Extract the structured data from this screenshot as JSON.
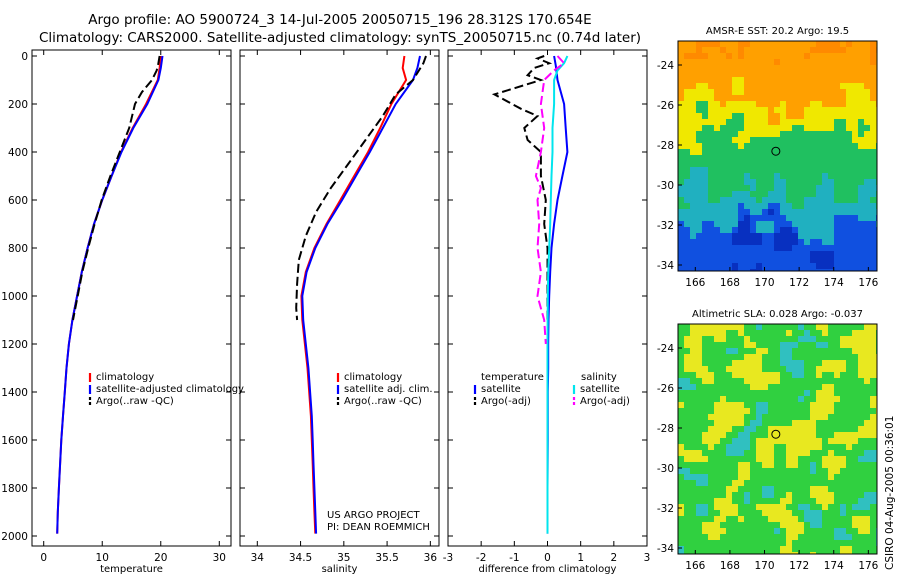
{
  "header": {
    "title_line1": "Argo profile: AO 5900724_3 14-Jul-2005 20050715_196 28.312S 170.654E",
    "title_line2": "Climatology: CARS2000. Satellite-adjusted climatology: synTS_20050715.nc (0.74d later)"
  },
  "credit": "CSIRO 04-Aug-2005 00:36:01",
  "colors": {
    "climatology": "#ff0000",
    "satellite": "#0000ff",
    "argo": "#000000",
    "salinity_satellite": "#00e5ee",
    "salinity_argo": "#ff00ff"
  },
  "chart_data": [
    {
      "type": "line",
      "xlabel": "temperature",
      "ylabel": "",
      "xlim": [
        -2,
        32
      ],
      "ylim": [
        0,
        2050
      ],
      "y_inverted": true,
      "xticks": [
        "0",
        "10",
        "20",
        "30"
      ],
      "yticks": [
        "0",
        "200",
        "400",
        "600",
        "800",
        "1000",
        "1200",
        "1400",
        "1600",
        "1800",
        "2000"
      ],
      "legend": [
        "climatology",
        "satellite-adjusted climatology",
        "Argo(..raw -QC)"
      ],
      "series": [
        {
          "name": "climatology",
          "points": [
            [
              20.0,
              0
            ],
            [
              19.8,
              50
            ],
            [
              19.5,
              100
            ],
            [
              17.5,
              200
            ],
            [
              15.2,
              300
            ],
            [
              13.2,
              400
            ],
            [
              11.6,
              500
            ],
            [
              10.0,
              600
            ],
            [
              8.6,
              700
            ],
            [
              7.5,
              800
            ],
            [
              6.5,
              900
            ],
            [
              5.7,
              1000
            ],
            [
              4.9,
              1100
            ],
            [
              4.3,
              1200
            ],
            [
              3.9,
              1300
            ],
            [
              3.6,
              1400
            ],
            [
              3.3,
              1500
            ],
            [
              3.0,
              1600
            ],
            [
              2.8,
              1700
            ],
            [
              2.6,
              1800
            ],
            [
              2.4,
              1900
            ],
            [
              2.3,
              1990
            ]
          ]
        },
        {
          "name": "satellite-adjusted climatology",
          "points": [
            [
              20.3,
              0
            ],
            [
              20.0,
              50
            ],
            [
              19.6,
              100
            ],
            [
              17.7,
              200
            ],
            [
              15.3,
              300
            ],
            [
              13.3,
              400
            ],
            [
              11.6,
              500
            ],
            [
              10.0,
              600
            ],
            [
              8.6,
              700
            ],
            [
              7.5,
              800
            ],
            [
              6.5,
              900
            ],
            [
              5.7,
              1000
            ],
            [
              4.9,
              1100
            ],
            [
              4.3,
              1200
            ],
            [
              3.9,
              1300
            ],
            [
              3.6,
              1400
            ],
            [
              3.3,
              1500
            ],
            [
              3.0,
              1600
            ],
            [
              2.8,
              1700
            ],
            [
              2.6,
              1800
            ],
            [
              2.4,
              1900
            ],
            [
              2.3,
              1990
            ]
          ]
        },
        {
          "name": "Argo(..raw -QC)",
          "points": [
            [
              19.8,
              0
            ],
            [
              19.6,
              30
            ],
            [
              19.3,
              60
            ],
            [
              18.5,
              100
            ],
            [
              16.8,
              150
            ],
            [
              15.6,
              200
            ],
            [
              14.6,
              300
            ],
            [
              13.0,
              400
            ],
            [
              11.4,
              500
            ],
            [
              9.9,
              600
            ],
            [
              8.7,
              700
            ],
            [
              7.6,
              800
            ],
            [
              6.6,
              900
            ],
            [
              5.8,
              1000
            ],
            [
              5.0,
              1100
            ]
          ]
        }
      ]
    },
    {
      "type": "line",
      "xlabel": "salinity",
      "ylabel": "",
      "xlim": [
        33.8,
        36.1
      ],
      "ylim": [
        0,
        2050
      ],
      "y_inverted": true,
      "xticks": [
        "34",
        "34.5",
        "35",
        "35.5",
        "36"
      ],
      "legend": [
        "climatology",
        "satellite adj. clim.",
        "Argo(..raw -QC)"
      ],
      "annotation": [
        "US ARGO PROJECT",
        "PI: DEAN ROEMMICH"
      ],
      "series": [
        {
          "name": "climatology",
          "points": [
            [
              35.7,
              0
            ],
            [
              35.68,
              50
            ],
            [
              35.72,
              100
            ],
            [
              35.55,
              200
            ],
            [
              35.42,
              300
            ],
            [
              35.28,
              400
            ],
            [
              35.12,
              500
            ],
            [
              34.96,
              600
            ],
            [
              34.8,
              700
            ],
            [
              34.66,
              800
            ],
            [
              34.56,
              900
            ],
            [
              34.51,
              1000
            ],
            [
              34.52,
              1100
            ],
            [
              34.55,
              1200
            ],
            [
              34.58,
              1300
            ],
            [
              34.6,
              1400
            ],
            [
              34.62,
              1500
            ],
            [
              34.63,
              1600
            ],
            [
              34.64,
              1700
            ],
            [
              34.65,
              1800
            ],
            [
              34.66,
              1900
            ],
            [
              34.67,
              1990
            ]
          ]
        },
        {
          "name": "satellite adj. clim.",
          "points": [
            [
              35.88,
              0
            ],
            [
              35.85,
              50
            ],
            [
              35.8,
              100
            ],
            [
              35.6,
              200
            ],
            [
              35.45,
              300
            ],
            [
              35.3,
              400
            ],
            [
              35.14,
              500
            ],
            [
              34.98,
              600
            ],
            [
              34.81,
              700
            ],
            [
              34.67,
              800
            ],
            [
              34.57,
              900
            ],
            [
              34.52,
              1000
            ],
            [
              34.53,
              1100
            ],
            [
              34.56,
              1200
            ],
            [
              34.59,
              1300
            ],
            [
              34.61,
              1400
            ],
            [
              34.63,
              1500
            ],
            [
              34.64,
              1600
            ],
            [
              34.65,
              1700
            ],
            [
              34.66,
              1800
            ],
            [
              34.67,
              1900
            ],
            [
              34.68,
              1990
            ]
          ]
        },
        {
          "name": "Argo(..raw -QC)",
          "points": [
            [
              35.95,
              0
            ],
            [
              35.92,
              30
            ],
            [
              35.8,
              100
            ],
            [
              35.6,
              160
            ],
            [
              35.45,
              250
            ],
            [
              35.25,
              350
            ],
            [
              35.05,
              450
            ],
            [
              34.85,
              550
            ],
            [
              34.68,
              650
            ],
            [
              34.56,
              750
            ],
            [
              34.48,
              850
            ],
            [
              34.46,
              950
            ],
            [
              34.45,
              1050
            ],
            [
              34.46,
              1100
            ]
          ]
        }
      ]
    },
    {
      "type": "line",
      "xlabel": "difference from climatology",
      "ylabel": "",
      "xlim": [
        -3,
        3
      ],
      "ylim": [
        0,
        2050
      ],
      "y_inverted": true,
      "xticks": [
        "-3",
        "-2",
        "-1",
        "0",
        "1",
        "2",
        "3"
      ],
      "legend": [
        "temperature",
        "satellite",
        "Argo(-adj)",
        "salinity",
        "satellite",
        "Argo(-adj)"
      ],
      "series": [
        {
          "name": "satellite",
          "quantity": "temperature",
          "points": [
            [
              0.2,
              0
            ],
            [
              0.25,
              40
            ],
            [
              0.3,
              100
            ],
            [
              0.5,
              200
            ],
            [
              0.55,
              300
            ],
            [
              0.6,
              400
            ],
            [
              0.45,
              500
            ],
            [
              0.3,
              600
            ],
            [
              0.2,
              700
            ],
            [
              0.12,
              800
            ],
            [
              0.08,
              900
            ],
            [
              0.05,
              1000
            ],
            [
              0.03,
              1100
            ],
            [
              0.02,
              1200
            ],
            [
              0.02,
              1300
            ],
            [
              0.01,
              1400
            ],
            [
              0.01,
              1600
            ],
            [
              0.0,
              1800
            ],
            [
              0.0,
              1990
            ]
          ]
        },
        {
          "name": "Argo(-adj)",
          "quantity": "temperature",
          "points": [
            [
              -0.1,
              0
            ],
            [
              -0.3,
              10
            ],
            [
              0.05,
              30
            ],
            [
              -0.4,
              50
            ],
            [
              -0.6,
              80
            ],
            [
              -0.2,
              100
            ],
            [
              -1.6,
              160
            ],
            [
              -0.8,
              220
            ],
            [
              -0.3,
              250
            ],
            [
              -0.7,
              300
            ],
            [
              -0.6,
              350
            ],
            [
              -0.2,
              400
            ],
            [
              -0.2,
              500
            ],
            [
              -0.05,
              600
            ],
            [
              -0.1,
              700
            ],
            [
              0.0,
              800
            ],
            [
              0.0,
              900
            ],
            [
              0.0,
              1000
            ],
            [
              0.0,
              1100
            ]
          ]
        },
        {
          "name": "satellite",
          "quantity": "salinity",
          "points": [
            [
              0.6,
              0
            ],
            [
              0.5,
              30
            ],
            [
              0.3,
              60
            ],
            [
              0.2,
              100
            ],
            [
              0.2,
              200
            ],
            [
              0.15,
              300
            ],
            [
              0.15,
              400
            ],
            [
              0.12,
              500
            ],
            [
              0.1,
              600
            ],
            [
              0.08,
              700
            ],
            [
              0.05,
              800
            ],
            [
              0.02,
              900
            ],
            [
              0.01,
              1000
            ],
            [
              0.0,
              1200
            ],
            [
              0.0,
              1400
            ],
            [
              0.0,
              1990
            ]
          ]
        },
        {
          "name": "Argo(-adj)",
          "quantity": "salinity",
          "points": [
            [
              0.3,
              0
            ],
            [
              0.5,
              30
            ],
            [
              0.2,
              60
            ],
            [
              -0.1,
              100
            ],
            [
              -0.2,
              200
            ],
            [
              -0.1,
              300
            ],
            [
              -0.2,
              400
            ],
            [
              -0.35,
              500
            ],
            [
              -0.2,
              550
            ],
            [
              -0.3,
              600
            ],
            [
              -0.25,
              700
            ],
            [
              -0.3,
              800
            ],
            [
              -0.2,
              900
            ],
            [
              -0.3,
              1000
            ],
            [
              -0.1,
              1100
            ],
            [
              -0.05,
              1200
            ]
          ]
        }
      ]
    },
    {
      "type": "heatmap",
      "title": "AMSR-E SST: 20.2 Argo: 19.5",
      "xlim": [
        165,
        176.5
      ],
      "ylim": [
        -34.3,
        -22.8
      ],
      "xticks": [
        "166",
        "168",
        "170",
        "172",
        "174",
        "176"
      ],
      "yticks": [
        "-24",
        "-26",
        "-28",
        "-30",
        "-32",
        "-34"
      ],
      "marker": [
        170.654,
        -28.312
      ],
      "bands": [
        {
          "name": "orange",
          "color": "#ffa000"
        },
        {
          "name": "yellow",
          "color": "#f0e800"
        },
        {
          "name": "green",
          "color": "#20c060"
        },
        {
          "name": "cyan",
          "color": "#20b0c0"
        },
        {
          "name": "blue",
          "color": "#1050e0"
        }
      ]
    },
    {
      "type": "heatmap",
      "title": "Altimetric SLA: 0.028 Argo: -0.037",
      "xlim": [
        165,
        176.5
      ],
      "ylim": [
        -34.3,
        -22.8
      ],
      "xticks": [
        "166",
        "168",
        "170",
        "172",
        "174",
        "176"
      ],
      "yticks": [
        "-24",
        "-26",
        "-28",
        "-30",
        "-32",
        "-34"
      ],
      "marker": [
        170.654,
        -28.312
      ],
      "bands": [
        {
          "name": "green",
          "color": "#30d040"
        },
        {
          "name": "yellow",
          "color": "#e8e820"
        },
        {
          "name": "cyan",
          "color": "#30c0c0"
        }
      ]
    }
  ]
}
